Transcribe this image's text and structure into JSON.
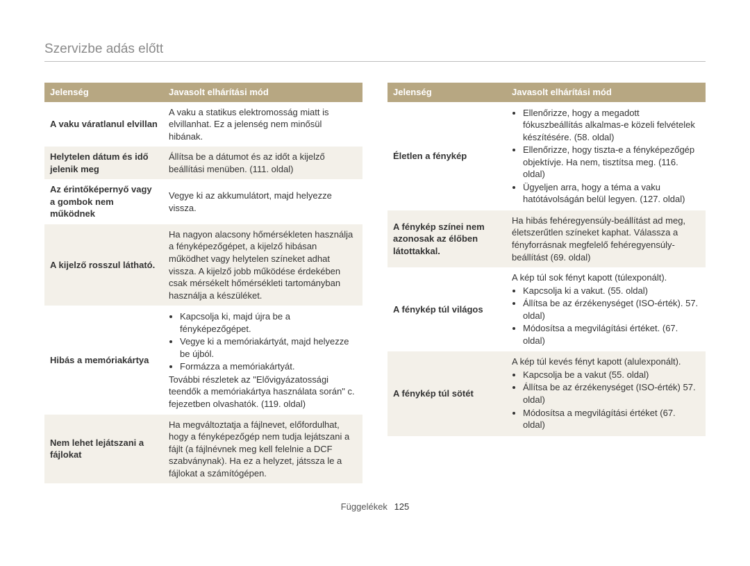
{
  "title": "Szervizbe adás előtt",
  "header": {
    "situation": "Jelenség",
    "remedy": "Javasolt elhárítási mód"
  },
  "left": [
    {
      "label": "A vaku váratlanul elvillan",
      "text": "A vaku a statikus elektromosság miatt is elvillanhat. Ez a jelenség nem minősül hibának."
    },
    {
      "label": "Helytelen dátum és idő jelenik meg",
      "text": "Állítsa be a dátumot és az időt a kijelző beállítási menüben. (111. oldal)"
    },
    {
      "label": "Az érintőképernyő vagy a gombok nem működnek",
      "text": "Vegye ki az akkumulátort, majd helyezze vissza."
    },
    {
      "label": "A kijelző rosszul látható.",
      "text": "Ha nagyon alacsony hőmérsékleten használja a fényképezőgépet, a kijelző hibásan működhet vagy helytelen színeket adhat vissza. A kijelző jobb működése érdekében csak mérsékelt hőmérsékleti tartományban használja a készüléket."
    },
    {
      "label": "Hibás a memóriakártya",
      "bullets": [
        "Kapcsolja ki, majd újra be a fényképezőgépet.",
        "Vegye ki a memóriakártyát, majd helyezze be újból.",
        "Formázza a memóriakártyát."
      ],
      "tail": "További részletek az \"Elővigyázatossági teendők a memóriakártya használata során\" c. fejezetben olvashatók. (119. oldal)"
    },
    {
      "label": "Nem lehet lejátszani a fájlokat",
      "text": "Ha megváltoztatja a fájlnevet, előfordulhat, hogy a fényképezőgép nem tudja lejátszani a fájlt (a fájlnévnek meg kell felelnie a DCF szabványnak). Ha ez a helyzet, játssza le a fájlokat a számítógépen."
    }
  ],
  "right": [
    {
      "label": "Életlen a fénykép",
      "bullets": [
        "Ellenőrizze, hogy a megadott fókuszbeállítás alkalmas-e közeli felvételek készítésére. (58. oldal)",
        "Ellenőrizze, hogy tiszta-e a fényképezőgép objektívje. Ha nem, tisztítsa meg. (116. oldal)",
        "Ügyeljen arra, hogy a téma a vaku hatótávolságán belül legyen. (127. oldal)"
      ]
    },
    {
      "label": "A fénykép színei nem azonosak az élőben látottakkal.",
      "text": "Ha hibás fehéregyensúly-beállítást ad meg, életszerűtlen színeket kaphat. Válassza a fényforrásnak megfelelő fehéregyensúly-beállítást (69. oldal)"
    },
    {
      "label": "A fénykép túl világos",
      "lead": "A kép túl sok fényt kapott (túlexponált).",
      "bullets": [
        "Kapcsolja ki a vakut. (55. oldal)",
        "Állítsa be az érzékenységet (ISO-érték). 57. oldal)",
        "Módosítsa a megvilágítási értéket. (67. oldal)"
      ]
    },
    {
      "label": "A fénykép túl sötét",
      "lead": "A kép túl kevés fényt kapott (alulexponált).",
      "bullets": [
        "Kapcsolja be a vakut (55. oldal)",
        "Állítsa be az érzékenységet (ISO-érték) 57. oldal)",
        "Módosítsa a megvilágítási értéket (67. oldal)"
      ]
    }
  ],
  "footer": {
    "label": "Függelékek",
    "page": "125"
  },
  "colors": {
    "header_bg": "#b7a782",
    "header_fg": "#ffffff",
    "row_alt": "#f3f0e9",
    "title_fg": "#8a8a8a",
    "rule": "#bdbdbd",
    "text": "#333333"
  }
}
